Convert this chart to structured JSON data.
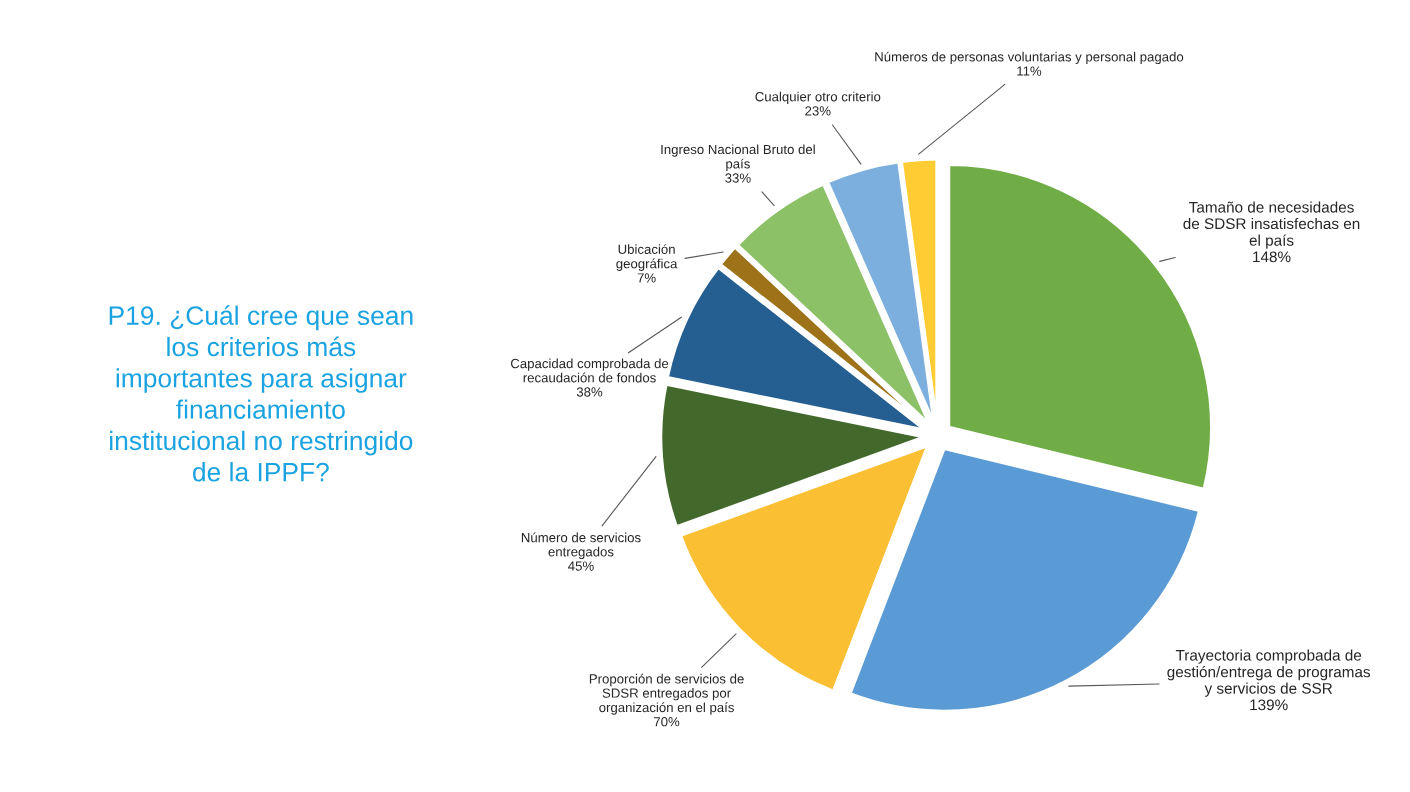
{
  "chart_data": {
    "type": "pie",
    "title": "P19. ¿Cuál cree que sean\nlos criterios más\nimportantes para asignar\nfinanciamiento\ninstitucional no restringido\nde la IPPF?",
    "categories": [
      "Tamaño de necesidades\nde SDSR insatisfechas en\nel país",
      "Trayectoria comprobada de\ngestión/entrega de programas\ny servicios de SSR",
      "Proporción de servicios de\nSDSR entregados por\norganización en el país",
      "Número de servicios\nentregados",
      "Capacidad comprobada de\nrecaudación de fondos",
      "Ubicación\ngeográfica",
      "Ingreso Nacional Bruto del\npaís",
      "Cualquier otro criterio",
      "Números de personas voluntarias y personal pagado"
    ],
    "values": [
      148,
      139,
      70,
      45,
      38,
      7,
      33,
      23,
      11
    ],
    "value_labels": [
      "148%",
      "139%",
      "70%",
      "45%",
      "38%",
      "7%",
      "33%",
      "23%",
      "11%"
    ],
    "colors": [
      "#70ad47",
      "#5b9bd5",
      "#fbbf33",
      "#43682b",
      "#255e91",
      "#9e7219",
      "#8cc168",
      "#7cafdd",
      "#ffcd33"
    ]
  }
}
